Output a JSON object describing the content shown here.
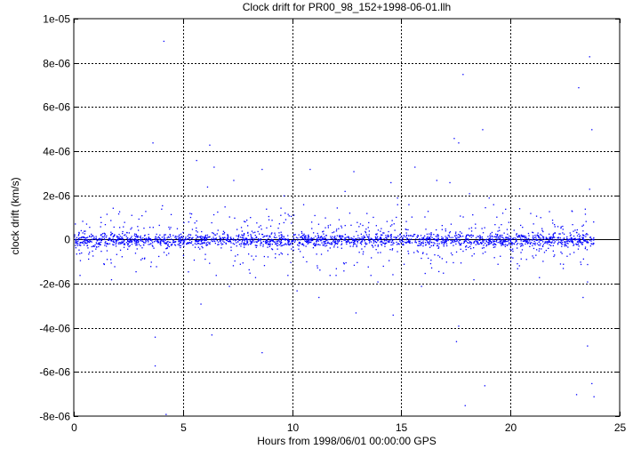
{
  "chart_data": {
    "type": "scatter",
    "title": "Clock drift for PR00_98_152+1998-06-01.llh",
    "xlabel": "Hours from 1998/06/01 00:00:00 GPS",
    "ylabel": "clock drift (km/s)",
    "xlim": [
      0,
      25
    ],
    "ylim": [
      -8e-06,
      1e-05
    ],
    "x_ticks": [
      0,
      5,
      10,
      15,
      20,
      25
    ],
    "x_tick_labels": [
      "0",
      "5",
      "10",
      "15",
      "20",
      "25"
    ],
    "y_ticks": [
      -8e-06,
      -6e-06,
      -4e-06,
      -2e-06,
      0,
      2e-06,
      4e-06,
      6e-06,
      8e-06,
      1e-05
    ],
    "y_tick_labels": [
      "-8e-06",
      "-6e-06",
      "-4e-06",
      "-2e-06",
      "0",
      "2e-06",
      "4e-06",
      "6e-06",
      "8e-06",
      "1e-05"
    ],
    "grid": true,
    "zero_line": true,
    "marker_color": "#0000ff",
    "series": [
      {
        "points": [
          [
            0.5,
            4e-07
          ],
          [
            0.8,
            -3e-07
          ],
          [
            1.2,
            6e-07
          ],
          [
            1.7,
            -1.8e-06
          ],
          [
            2.3,
            8e-07
          ],
          [
            2.8,
            -6e-07
          ],
          [
            3.1,
            1.1e-06
          ],
          [
            3.5,
            -1.2e-06
          ],
          [
            3.6,
            4.4e-06
          ],
          [
            3.7,
            -4.4e-06
          ],
          [
            3.7,
            -5.7e-06
          ],
          [
            4.0,
            1.4e-06
          ],
          [
            4.1,
            9e-06
          ],
          [
            4.2,
            -7.9e-06
          ],
          [
            5.0,
            -7e-07
          ],
          [
            5.3,
            1.2e-06
          ],
          [
            5.6,
            3.6e-06
          ],
          [
            5.8,
            -2.9e-06
          ],
          [
            6.0,
            1e-07
          ],
          [
            6.1,
            2.4e-06
          ],
          [
            6.2,
            4.3e-06
          ],
          [
            6.3,
            -4.3e-06
          ],
          [
            6.4,
            3.3e-06
          ],
          [
            6.5,
            -1.6e-06
          ],
          [
            6.9,
            1.5e-06
          ],
          [
            7.1,
            -2.1e-06
          ],
          [
            7.3,
            2.7e-06
          ],
          [
            7.6,
            -1.1e-06
          ],
          [
            7.9,
            9e-07
          ],
          [
            8.3,
            -1.7e-06
          ],
          [
            8.6,
            3.2e-06
          ],
          [
            8.6,
            -5.1e-06
          ],
          [
            8.8,
            1.4e-06
          ],
          [
            9.2,
            -8e-07
          ],
          [
            9.6,
            2e-06
          ],
          [
            10.2,
            -2.3e-06
          ],
          [
            10.5,
            1.6e-06
          ],
          [
            10.8,
            3.2e-06
          ],
          [
            11.2,
            -2.6e-06
          ],
          [
            11.5,
            1e-06
          ],
          [
            12.0,
            -1.3e-06
          ],
          [
            12.4,
            2.2e-06
          ],
          [
            12.8,
            3.1e-06
          ],
          [
            12.9,
            -3.3e-06
          ],
          [
            13.4,
            1.2e-06
          ],
          [
            13.9,
            -1.9e-06
          ],
          [
            14.5,
            2.6e-06
          ],
          [
            14.6,
            -3.4e-06
          ],
          [
            14.8,
            1.9e-06
          ],
          [
            15.1,
            -1.1e-06
          ],
          [
            15.6,
            3.3e-06
          ],
          [
            15.9,
            -2.1e-06
          ],
          [
            16.2,
            1.3e-06
          ],
          [
            16.6,
            2.7e-06
          ],
          [
            16.9,
            -1.5e-06
          ],
          [
            17.2,
            2.6e-06
          ],
          [
            17.4,
            4.6e-06
          ],
          [
            17.5,
            -4.6e-06
          ],
          [
            17.6,
            4.4e-06
          ],
          [
            17.6,
            -3.9e-06
          ],
          [
            17.8,
            7.5e-06
          ],
          [
            17.9,
            -7.5e-06
          ],
          [
            18.1,
            2.1e-06
          ],
          [
            18.3,
            -1.8e-06
          ],
          [
            18.7,
            5e-06
          ],
          [
            18.8,
            -6.6e-06
          ],
          [
            19.0,
            1.9e-06
          ],
          [
            19.2,
            1.6e-06
          ],
          [
            19.4,
            -1.1e-06
          ],
          [
            19.9,
            8e-07
          ],
          [
            20.3,
            -1.3e-06
          ],
          [
            20.9,
            1.2e-06
          ],
          [
            21.3,
            -1.7e-06
          ],
          [
            21.9,
            9e-07
          ],
          [
            22.4,
            -1.1e-06
          ],
          [
            22.8,
            1.3e-06
          ],
          [
            23.0,
            -7e-06
          ],
          [
            23.1,
            6.9e-06
          ],
          [
            23.3,
            -2.6e-06
          ],
          [
            23.4,
            1.4e-06
          ],
          [
            23.5,
            -4.8e-06
          ],
          [
            23.6,
            8.3e-06
          ],
          [
            23.7,
            -6.5e-06
          ],
          [
            23.7,
            5e-06
          ],
          [
            23.8,
            -7.1e-06
          ],
          [
            23.6,
            2.3e-06
          ],
          [
            23.5,
            -1.9e-06
          ]
        ],
        "dense_band": {
          "x_range": [
            0,
            23.8
          ],
          "typical_spread": 3e-07,
          "outer_spread": 1.2e-06,
          "approx_points": 2400
        }
      }
    ]
  }
}
